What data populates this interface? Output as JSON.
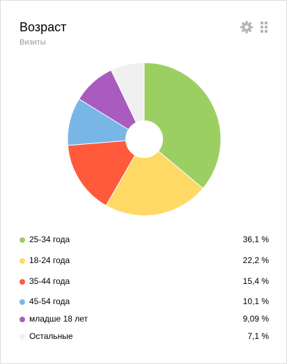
{
  "chart_data": {
    "type": "pie",
    "title": "Возраст",
    "subtitle": "Визиты",
    "categories": [
      "25-34 года",
      "18-24 года",
      "35-44 года",
      "45-54 года",
      "младше 18 лет",
      "Остальные"
    ],
    "values": [
      36.1,
      22.2,
      15.4,
      10.1,
      9.09,
      7.1
    ],
    "value_labels": [
      "36,1 %",
      "22,2 %",
      "15,4 %",
      "10,1 %",
      "9,09 %",
      "7,1 %"
    ],
    "colors": [
      "#9ccf62",
      "#ffd966",
      "#ff5a3c",
      "#78b6e8",
      "#a95bc0",
      "#f0f0f0"
    ]
  }
}
